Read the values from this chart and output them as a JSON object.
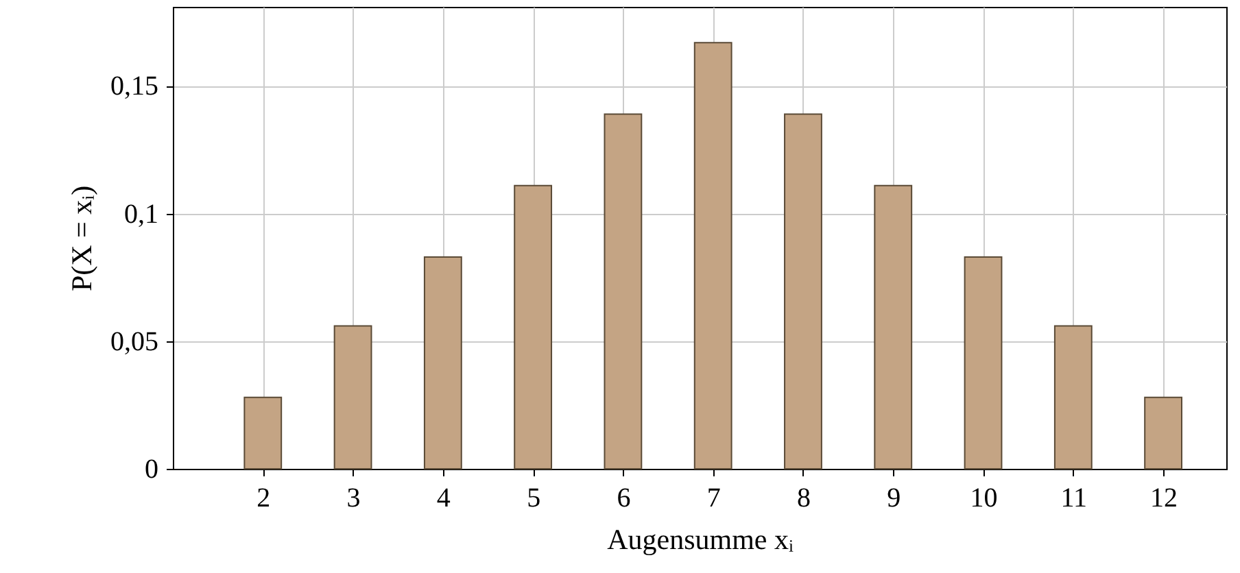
{
  "chart_data": {
    "type": "bar",
    "xlabel": "Augensumme xᵢ",
    "ylabel": "P(X = xᵢ)",
    "x": [
      2,
      3,
      4,
      5,
      6,
      7,
      8,
      9,
      10,
      11,
      12
    ],
    "values": [
      0.028,
      0.056,
      0.083,
      0.111,
      0.139,
      0.167,
      0.139,
      0.111,
      0.083,
      0.056,
      0.028
    ],
    "color": "#c4a484",
    "xlim": [
      1,
      12.7
    ],
    "ylim": [
      0,
      0.181
    ],
    "xticks": [
      2,
      3,
      4,
      5,
      6,
      7,
      8,
      9,
      10,
      11,
      12
    ],
    "yticks": [
      {
        "value": 0,
        "label": "0"
      },
      {
        "value": 0.05,
        "label": "0,05"
      },
      {
        "value": 0.1,
        "label": "0,1"
      },
      {
        "value": 0.15,
        "label": "0,15"
      }
    ],
    "grid": true
  }
}
